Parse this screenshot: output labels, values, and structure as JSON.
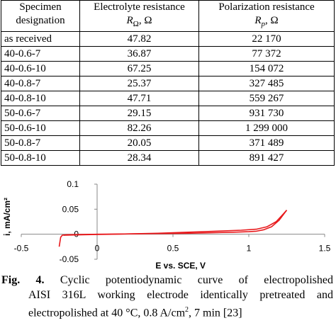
{
  "table": {
    "headers": [
      {
        "line1": "Specimen",
        "line2": "designation"
      },
      {
        "line1": "Electrolyte resistance",
        "line2": "RΩ, Ω"
      },
      {
        "line1": "Polarization resistance",
        "line2": "Rp, Ω"
      }
    ],
    "rows": [
      [
        "as received",
        "47.82",
        "22 170"
      ],
      [
        "40-0.6-7",
        "36.87",
        "77 372"
      ],
      [
        "40-0.6-10",
        "67.25",
        "154 072"
      ],
      [
        "40-0.8-7",
        "25.37",
        "327 485"
      ],
      [
        "40-0.8-10",
        "47.71",
        "559 267"
      ],
      [
        "50-0.6-7",
        "29.15",
        "931 730"
      ],
      [
        "50-0.6-10",
        "82.26",
        "1 299 000"
      ],
      [
        "50-0.8-7",
        "20.05",
        "371 489"
      ],
      [
        "50-0.8-10",
        "28.34",
        "891 427"
      ]
    ]
  },
  "chart_data": {
    "type": "line",
    "xlabel": "E vs. SCE, V",
    "ylabel": "i, mA/cm²",
    "xlim": [
      -0.5,
      1.5
    ],
    "ylim": [
      -0.05,
      0.1
    ],
    "xticks": [
      "-0.5",
      "0",
      "0.5",
      "1",
      "1.5"
    ],
    "yticks": [
      "-0.05",
      "0",
      "0.05",
      "0.1"
    ],
    "grid": false,
    "series_color": "#e8191c",
    "series": [
      {
        "x": [
          -0.25,
          -0.24,
          -0.23,
          -0.2,
          0.0,
          0.3,
          0.6,
          0.9,
          1.0,
          1.05,
          1.1,
          1.15,
          1.2,
          1.25
        ],
        "y": [
          -0.025,
          -0.006,
          -0.002,
          -0.001,
          0.0,
          0.001,
          0.002,
          0.004,
          0.005,
          0.006,
          0.009,
          0.015,
          0.028,
          0.048
        ]
      },
      {
        "x": [
          1.25,
          1.22,
          1.18,
          1.12,
          1.05,
          0.95,
          0.7,
          0.4,
          0.1,
          -0.1,
          -0.22
        ],
        "y": [
          0.048,
          0.038,
          0.025,
          0.015,
          0.01,
          0.008,
          0.005,
          0.002,
          0.0,
          -0.001,
          -0.002
        ]
      }
    ]
  },
  "caption": {
    "label": "Fig. 4.",
    "line1": "Cyclic potentiodynamic curve of electropolished",
    "line2": "AISI 316L working electrode identically pretreated and",
    "line3a": "electropolished at 40 °C, 0.8 A/cm",
    "line3sup": "2",
    "line3b": ", 7 min [23]"
  }
}
